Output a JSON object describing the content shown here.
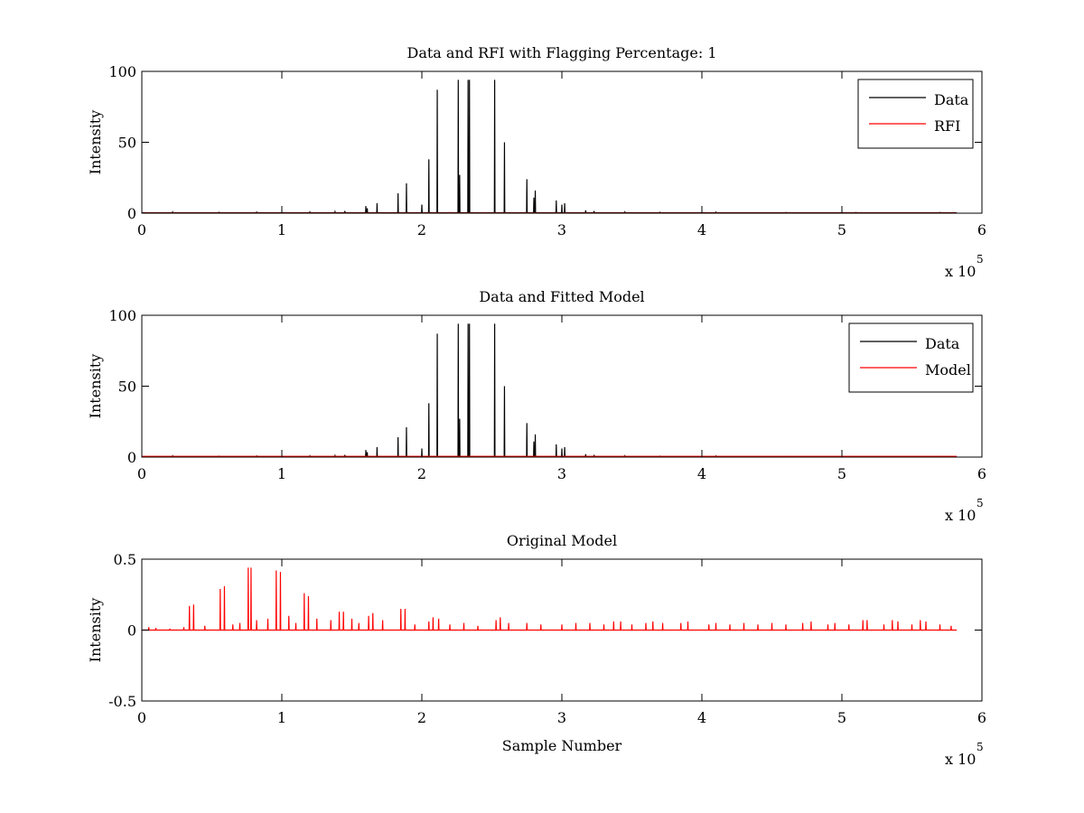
{
  "figure_title": "",
  "chart_data": [
    {
      "type": "line",
      "title": "Data and RFI with Flagging Percentage: 1",
      "xlabel": "",
      "ylabel": "Intensity",
      "xlim": [
        0,
        6
      ],
      "ylim": [
        0,
        100
      ],
      "x_ticks": [
        "0",
        "1",
        "2",
        "3",
        "4",
        "5",
        "6"
      ],
      "y_ticks": [
        "0",
        "50",
        "100"
      ],
      "y_tick_values": [
        0,
        50,
        100
      ],
      "x_multiplier": "x 10",
      "x_multiplier_exp": "5",
      "x_data_end": 5.82,
      "legend": {
        "position": "top-right",
        "entries": [
          {
            "label": "Data",
            "color": "#000000"
          },
          {
            "label": "RFI",
            "color": "#ff0000"
          }
        ]
      },
      "series": [
        {
          "name": "Data",
          "color": "#000000",
          "baseline": 0.3,
          "spikes": [
            [
              0.22,
              0.8
            ],
            [
              0.55,
              0.6
            ],
            [
              0.82,
              0.7
            ],
            [
              1.2,
              0.8
            ],
            [
              1.38,
              1.0
            ],
            [
              1.45,
              1.5
            ],
            [
              1.6,
              5
            ],
            [
              1.61,
              3.5
            ],
            [
              1.68,
              7
            ],
            [
              1.83,
              14
            ],
            [
              1.89,
              21
            ],
            [
              2.0,
              6
            ],
            [
              2.05,
              38
            ],
            [
              2.11,
              87
            ],
            [
              2.26,
              94
            ],
            [
              2.27,
              27
            ],
            [
              2.33,
              94
            ],
            [
              2.34,
              94
            ],
            [
              2.52,
              94
            ],
            [
              2.59,
              50
            ],
            [
              2.75,
              24
            ],
            [
              2.8,
              11
            ],
            [
              2.81,
              16
            ],
            [
              2.96,
              9
            ],
            [
              3.0,
              6
            ],
            [
              3.02,
              7
            ],
            [
              3.17,
              2
            ],
            [
              3.23,
              1.5
            ],
            [
              3.45,
              0.8
            ],
            [
              3.7,
              0.6
            ],
            [
              4.1,
              0.7
            ],
            [
              4.6,
              0.5
            ],
            [
              5.1,
              0.5
            ],
            [
              5.7,
              0.5
            ]
          ]
        },
        {
          "name": "RFI",
          "color": "#ff0000",
          "baseline": 0.1,
          "spikes": [
            [
              2.2,
              0.4
            ],
            [
              2.45,
              0.3
            ]
          ]
        }
      ]
    },
    {
      "type": "line",
      "title": "Data and Fitted Model",
      "xlabel": "",
      "ylabel": "Intensity",
      "xlim": [
        0,
        6
      ],
      "ylim": [
        0,
        100
      ],
      "x_ticks": [
        "0",
        "1",
        "2",
        "3",
        "4",
        "5",
        "6"
      ],
      "y_ticks": [
        "0",
        "50",
        "100"
      ],
      "y_tick_values": [
        0,
        50,
        100
      ],
      "x_multiplier": "x 10",
      "x_multiplier_exp": "5",
      "x_data_end": 5.82,
      "legend": {
        "position": "top-right",
        "entries": [
          {
            "label": "Data",
            "color": "#000000"
          },
          {
            "label": "Model",
            "color": "#ff0000"
          }
        ]
      },
      "series": [
        {
          "name": "Data",
          "color": "#000000",
          "baseline": 0.3,
          "spikes": [
            [
              0.22,
              0.8
            ],
            [
              0.55,
              0.6
            ],
            [
              0.82,
              0.7
            ],
            [
              1.2,
              0.8
            ],
            [
              1.38,
              1.0
            ],
            [
              1.45,
              1.5
            ],
            [
              1.6,
              5
            ],
            [
              1.61,
              3.5
            ],
            [
              1.68,
              7
            ],
            [
              1.83,
              14
            ],
            [
              1.89,
              21
            ],
            [
              2.0,
              6
            ],
            [
              2.05,
              38
            ],
            [
              2.11,
              87
            ],
            [
              2.26,
              94
            ],
            [
              2.27,
              27
            ],
            [
              2.33,
              94
            ],
            [
              2.34,
              94
            ],
            [
              2.52,
              94
            ],
            [
              2.59,
              50
            ],
            [
              2.75,
              24
            ],
            [
              2.8,
              11
            ],
            [
              2.81,
              16
            ],
            [
              2.96,
              9
            ],
            [
              3.0,
              6
            ],
            [
              3.02,
              7
            ],
            [
              3.17,
              2
            ],
            [
              3.23,
              1.5
            ],
            [
              3.45,
              0.8
            ],
            [
              3.7,
              0.6
            ],
            [
              4.1,
              0.7
            ],
            [
              4.6,
              0.5
            ],
            [
              5.1,
              0.5
            ],
            [
              5.7,
              0.5
            ]
          ]
        },
        {
          "name": "Model",
          "color": "#ff0000",
          "baseline": 0.5,
          "spikes": []
        }
      ]
    },
    {
      "type": "line",
      "title": "Original Model",
      "xlabel": "Sample Number",
      "ylabel": "Intensity",
      "xlim": [
        0,
        6
      ],
      "ylim": [
        -0.5,
        0.5
      ],
      "x_ticks": [
        "0",
        "1",
        "2",
        "3",
        "4",
        "5",
        "6"
      ],
      "y_ticks": [
        "-0.5",
        "0",
        "0.5"
      ],
      "y_tick_values": [
        -0.5,
        0,
        0.5
      ],
      "x_multiplier": "x 10",
      "x_multiplier_exp": "5",
      "x_data_end": 5.82,
      "series": [
        {
          "color": "#ff0000",
          "baseline": 0.0,
          "spikes": [
            [
              0.05,
              0.02
            ],
            [
              0.1,
              0.015
            ],
            [
              0.2,
              0.01
            ],
            [
              0.3,
              0.02
            ],
            [
              0.34,
              0.17
            ],
            [
              0.37,
              0.18
            ],
            [
              0.45,
              0.03
            ],
            [
              0.56,
              0.29
            ],
            [
              0.59,
              0.31
            ],
            [
              0.65,
              0.04
            ],
            [
              0.7,
              0.05
            ],
            [
              0.76,
              0.44
            ],
            [
              0.78,
              0.44
            ],
            [
              0.82,
              0.07
            ],
            [
              0.9,
              0.08
            ],
            [
              0.96,
              0.42
            ],
            [
              0.99,
              0.41
            ],
            [
              1.05,
              0.1
            ],
            [
              1.1,
              0.05
            ],
            [
              1.16,
              0.26
            ],
            [
              1.19,
              0.24
            ],
            [
              1.25,
              0.08
            ],
            [
              1.35,
              0.07
            ],
            [
              1.41,
              0.13
            ],
            [
              1.44,
              0.13
            ],
            [
              1.5,
              0.08
            ],
            [
              1.55,
              0.05
            ],
            [
              1.62,
              0.1
            ],
            [
              1.65,
              0.12
            ],
            [
              1.72,
              0.07
            ],
            [
              1.85,
              0.15
            ],
            [
              1.88,
              0.15
            ],
            [
              1.95,
              0.04
            ],
            [
              2.05,
              0.06
            ],
            [
              2.08,
              0.09
            ],
            [
              2.12,
              0.08
            ],
            [
              2.2,
              0.04
            ],
            [
              2.3,
              0.05
            ],
            [
              2.4,
              0.03
            ],
            [
              2.53,
              0.07
            ],
            [
              2.56,
              0.09
            ],
            [
              2.62,
              0.05
            ],
            [
              2.75,
              0.05
            ],
            [
              2.85,
              0.04
            ],
            [
              3.0,
              0.04
            ],
            [
              3.1,
              0.05
            ],
            [
              3.2,
              0.05
            ],
            [
              3.3,
              0.04
            ],
            [
              3.37,
              0.06
            ],
            [
              3.42,
              0.06
            ],
            [
              3.5,
              0.04
            ],
            [
              3.6,
              0.05
            ],
            [
              3.65,
              0.06
            ],
            [
              3.72,
              0.05
            ],
            [
              3.85,
              0.05
            ],
            [
              3.9,
              0.06
            ],
            [
              4.05,
              0.04
            ],
            [
              4.1,
              0.05
            ],
            [
              4.2,
              0.04
            ],
            [
              4.3,
              0.05
            ],
            [
              4.4,
              0.04
            ],
            [
              4.5,
              0.05
            ],
            [
              4.6,
              0.04
            ],
            [
              4.72,
              0.05
            ],
            [
              4.78,
              0.06
            ],
            [
              4.9,
              0.04
            ],
            [
              4.95,
              0.05
            ],
            [
              5.05,
              0.04
            ],
            [
              5.15,
              0.07
            ],
            [
              5.18,
              0.07
            ],
            [
              5.3,
              0.04
            ],
            [
              5.36,
              0.07
            ],
            [
              5.4,
              0.06
            ],
            [
              5.5,
              0.04
            ],
            [
              5.56,
              0.07
            ],
            [
              5.6,
              0.06
            ],
            [
              5.7,
              0.04
            ],
            [
              5.78,
              0.03
            ]
          ]
        }
      ]
    }
  ]
}
